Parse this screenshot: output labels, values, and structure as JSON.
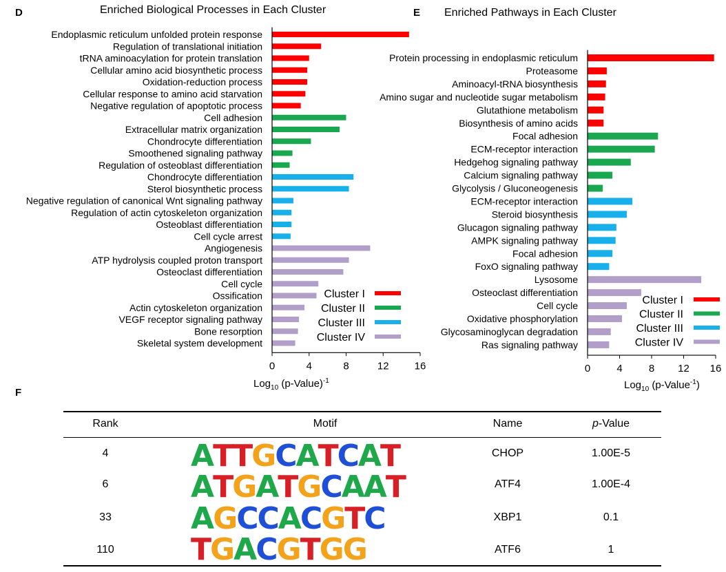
{
  "panel_d": {
    "letter": "D",
    "title": "Enriched Biological Processes in Each Cluster",
    "xlabel_main": "Log",
    "xlabel_sub": "10",
    "xlabel_rest": " (p-Value)",
    "xlabel_sup": "-1"
  },
  "panel_e": {
    "letter": "E",
    "title": "Enriched Pathways in Each Cluster",
    "xlabel_main": "Log",
    "xlabel_sub": "10",
    "xlabel_rest": " (p-Value",
    "xlabel_sup": "-1",
    "xlabel_close": ")"
  },
  "panel_f": {
    "letter": "F",
    "headers": {
      "rank": "Rank",
      "motif": "Motif",
      "name": "Name",
      "pvalue_italic": "p",
      "pvalue_rest": "-Value"
    },
    "rows": [
      {
        "rank": "4",
        "name": "CHOP",
        "pvalue": "1.00E-5",
        "motif": "ATTGCATCAT"
      },
      {
        "rank": "6",
        "name": "ATF4",
        "pvalue": "1.00E-4",
        "motif": "ATGATGCAAT"
      },
      {
        "rank": "33",
        "name": "XBP1",
        "pvalue": "0.1",
        "motif": "AGCCACGTC"
      },
      {
        "rank": "110",
        "name": "ATF6",
        "pvalue": "1",
        "motif": "TGACGTGG"
      }
    ],
    "base_colors": {
      "A": "#1fa84a",
      "C": "#1f4fd6",
      "G": "#f2a31b",
      "T": "#d81f26"
    }
  },
  "colors": {
    "Cluster I": "#ff0000",
    "Cluster II": "#19a850",
    "Cluster III": "#17b0ea",
    "Cluster IV": "#b19fc9"
  },
  "chart_data": [
    {
      "type": "bar",
      "orientation": "horizontal",
      "title": "Enriched Biological Processes in Each Cluster",
      "xlabel": "Log10 (p-Value)-1",
      "xlim": [
        0,
        16
      ],
      "xticks": [
        0,
        4,
        8,
        12,
        16
      ],
      "legend": [
        "Cluster I",
        "Cluster II",
        "Cluster III",
        "Cluster IV"
      ],
      "legend_position": "bottom-right",
      "bars": [
        {
          "label": "Endoplasmic reticulum unfolded protein response",
          "value": 14.8,
          "cluster": "Cluster I"
        },
        {
          "label": "Regulation of translational initiation",
          "value": 5.3,
          "cluster": "Cluster I"
        },
        {
          "label": "tRNA aminoacylation for protein translation",
          "value": 4.0,
          "cluster": "Cluster I"
        },
        {
          "label": "Cellular amino acid biosynthetic process",
          "value": 3.8,
          "cluster": "Cluster I"
        },
        {
          "label": "Oxidation-reduction process",
          "value": 3.8,
          "cluster": "Cluster I"
        },
        {
          "label": "Cellular response to amino acid starvation",
          "value": 3.6,
          "cluster": "Cluster I"
        },
        {
          "label": "Negative regulation of apoptotic process",
          "value": 3.1,
          "cluster": "Cluster I"
        },
        {
          "label": "Cell adhesion",
          "value": 8.0,
          "cluster": "Cluster II"
        },
        {
          "label": "Extracellular matrix organization",
          "value": 7.3,
          "cluster": "Cluster II"
        },
        {
          "label": "Chondrocyte differentiation",
          "value": 4.2,
          "cluster": "Cluster II"
        },
        {
          "label": "Smoothened signaling pathway",
          "value": 2.2,
          "cluster": "Cluster II"
        },
        {
          "label": "Regulation of osteoblast differentiation",
          "value": 1.9,
          "cluster": "Cluster II"
        },
        {
          "label": "Chondrocyte differentiation",
          "value": 8.8,
          "cluster": "Cluster III"
        },
        {
          "label": "Sterol biosynthetic process",
          "value": 8.3,
          "cluster": "Cluster III"
        },
        {
          "label": "Negative regulation of canonical Wnt signaling pathway",
          "value": 2.3,
          "cluster": "Cluster III"
        },
        {
          "label": "Regulation of actin cytoskeleton organization",
          "value": 2.1,
          "cluster": "Cluster III"
        },
        {
          "label": "Osteoblast differentiation",
          "value": 2.1,
          "cluster": "Cluster III"
        },
        {
          "label": "Cell cycle arrest",
          "value": 2.0,
          "cluster": "Cluster III"
        },
        {
          "label": "Angiogenesis",
          "value": 10.6,
          "cluster": "Cluster IV"
        },
        {
          "label": "ATP hydrolysis coupled proton transport",
          "value": 8.3,
          "cluster": "Cluster IV"
        },
        {
          "label": "Osteoclast differentiation",
          "value": 7.7,
          "cluster": "Cluster IV"
        },
        {
          "label": "Cell cycle",
          "value": 5.0,
          "cluster": "Cluster IV"
        },
        {
          "label": "Ossification",
          "value": 4.8,
          "cluster": "Cluster IV"
        },
        {
          "label": "Actin cytoskeleton organization",
          "value": 3.5,
          "cluster": "Cluster IV"
        },
        {
          "label": "VEGF receptor signaling pathway",
          "value": 2.9,
          "cluster": "Cluster IV"
        },
        {
          "label": "Bone resorption",
          "value": 2.8,
          "cluster": "Cluster IV"
        },
        {
          "label": "Skeletal system development",
          "value": 2.5,
          "cluster": "Cluster IV"
        }
      ]
    },
    {
      "type": "bar",
      "orientation": "horizontal",
      "title": "Enriched Pathways in Each Cluster",
      "xlabel": "Log10 (p-Value-1)",
      "xlim": [
        0,
        16
      ],
      "xticks": [
        0,
        4,
        8,
        12,
        16
      ],
      "legend": [
        "Cluster I",
        "Cluster II",
        "Cluster III",
        "Cluster IV"
      ],
      "legend_position": "bottom-right",
      "bars": [
        {
          "label": "Protein processing in endoplasmic reticulum",
          "value": 15.8,
          "cluster": "Cluster I"
        },
        {
          "label": "Proteasome",
          "value": 2.4,
          "cluster": "Cluster I"
        },
        {
          "label": "Aminoacyl-tRNA biosynthesis",
          "value": 2.3,
          "cluster": "Cluster I"
        },
        {
          "label": "Amino sugar and nucleotide sugar metabolism",
          "value": 2.2,
          "cluster": "Cluster I"
        },
        {
          "label": "Glutathione metabolism",
          "value": 2.0,
          "cluster": "Cluster I"
        },
        {
          "label": "Biosynthesis of amino acids",
          "value": 2.0,
          "cluster": "Cluster I"
        },
        {
          "label": "Focal adhesion",
          "value": 8.8,
          "cluster": "Cluster II"
        },
        {
          "label": "ECM-receptor interaction",
          "value": 8.4,
          "cluster": "Cluster II"
        },
        {
          "label": "Hedgehog signaling pathway",
          "value": 5.4,
          "cluster": "Cluster II"
        },
        {
          "label": "Calcium signaling pathway",
          "value": 3.1,
          "cluster": "Cluster II"
        },
        {
          "label": "Glycolysis / Gluconeogenesis",
          "value": 1.9,
          "cluster": "Cluster II"
        },
        {
          "label": "ECM-receptor interaction",
          "value": 5.6,
          "cluster": "Cluster III"
        },
        {
          "label": "Steroid biosynthesis",
          "value": 4.9,
          "cluster": "Cluster III"
        },
        {
          "label": "Glucagon signaling pathway",
          "value": 3.6,
          "cluster": "Cluster III"
        },
        {
          "label": "AMPK signaling pathway",
          "value": 3.5,
          "cluster": "Cluster III"
        },
        {
          "label": "Focal adhesion",
          "value": 3.1,
          "cluster": "Cluster III"
        },
        {
          "label": "FoxO signaling pathway",
          "value": 2.7,
          "cluster": "Cluster III"
        },
        {
          "label": "Lysosome",
          "value": 14.2,
          "cluster": "Cluster IV"
        },
        {
          "label": "Osteoclast differentiation",
          "value": 6.7,
          "cluster": "Cluster IV"
        },
        {
          "label": "Cell cycle",
          "value": 4.9,
          "cluster": "Cluster IV"
        },
        {
          "label": "Oxidative phosphorylation",
          "value": 4.3,
          "cluster": "Cluster IV"
        },
        {
          "label": "Glycosaminoglycan degradation",
          "value": 2.9,
          "cluster": "Cluster IV"
        },
        {
          "label": "Ras signaling pathway",
          "value": 2.7,
          "cluster": "Cluster IV"
        }
      ]
    }
  ]
}
